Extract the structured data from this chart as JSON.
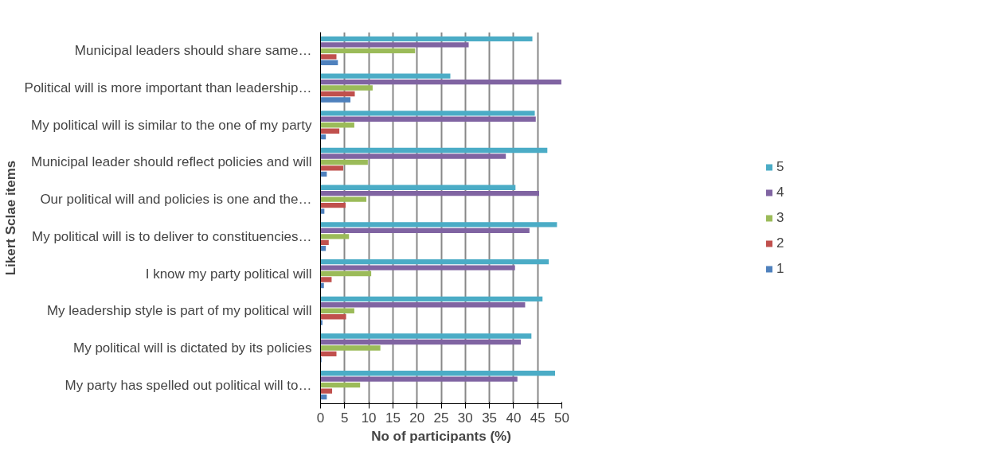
{
  "chart_data": {
    "type": "bar",
    "orientation": "horizontal",
    "xlabel": "No of participants (%)",
    "ylabel": "Likert Sclae items",
    "categories": [
      "Municipal leaders should share same…",
      "Political will is more important than leadership…",
      "My political will is similar to the one of my party",
      "Municipal leader should reflect policies and will",
      "Our political will and policies is one and the…",
      "My political will is to deliver to constituencies…",
      "I know my party political will",
      "My leadership style is part of my political will",
      "My political will is dictated by its policies",
      "My party has spelled out political will to…"
    ],
    "series": [
      {
        "name": "1",
        "color": "#4f81bd",
        "values": [
          3.6,
          6.2,
          1.1,
          1.3,
          0.8,
          1.1,
          0.7,
          0.4,
          0.2,
          1.3
        ]
      },
      {
        "name": "2",
        "color": "#c0504d",
        "values": [
          3.3,
          7.1,
          3.9,
          4.7,
          5.2,
          1.7,
          2.3,
          5.3,
          3.3,
          2.4
        ]
      },
      {
        "name": "3",
        "color": "#9bbb59",
        "values": [
          19.6,
          10.8,
          7.0,
          9.8,
          9.5,
          5.9,
          10.5,
          7.0,
          12.4,
          8.2
        ]
      },
      {
        "name": "4",
        "color": "#8064a2",
        "values": [
          30.7,
          49.9,
          44.6,
          38.4,
          45.3,
          43.3,
          40.3,
          42.4,
          41.5,
          40.8
        ]
      },
      {
        "name": "5",
        "color": "#4bacc6",
        "values": [
          43.9,
          26.9,
          44.4,
          47.0,
          40.4,
          49.0,
          47.3,
          46.0,
          43.7,
          48.6
        ]
      }
    ],
    "xlim": [
      0,
      50
    ],
    "xticks": [
      0,
      5,
      10,
      15,
      20,
      25,
      30,
      35,
      40,
      45,
      50
    ],
    "grid": "x",
    "legend": "right"
  }
}
